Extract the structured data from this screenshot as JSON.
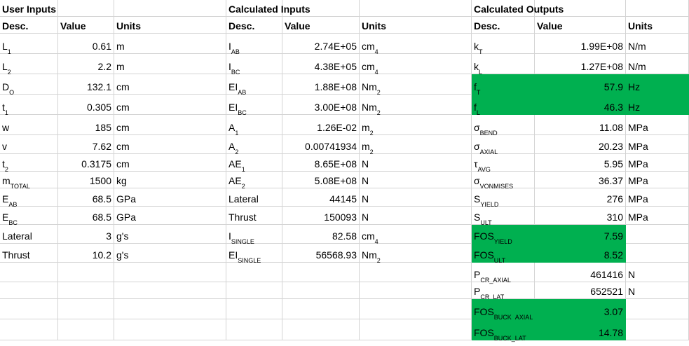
{
  "colors": {
    "highlight": "#00b050",
    "grid": "#d4d4d4"
  },
  "rows": [
    [
      {
        "t": "User Inputs",
        "b": 1
      },
      "",
      "",
      {
        "t": "Calculated Inputs",
        "b": 1
      },
      "",
      "",
      {
        "t": "Calculated Outputs",
        "b": 1
      },
      "",
      ""
    ],
    [
      {
        "t": "Desc.",
        "b": 1
      },
      {
        "t": "Value",
        "b": 1
      },
      {
        "t": "Units",
        "b": 1
      },
      {
        "t": "Desc.",
        "b": 1
      },
      {
        "t": "Value",
        "b": 1
      },
      {
        "t": "Units",
        "b": 1
      },
      {
        "t": "Desc.",
        "b": 1
      },
      {
        "t": "Value",
        "b": 1
      },
      {
        "t": "Units",
        "b": 1
      }
    ],
    [
      {
        "t": "L",
        "sub": "1"
      },
      {
        "t": "0.61",
        "r": 1
      },
      "m",
      {
        "t": "I",
        "sub": "AB"
      },
      {
        "t": "2.74E+05",
        "r": 1
      },
      {
        "t": "cm",
        "sup": "4"
      },
      {
        "t": "k",
        "sub": "T"
      },
      {
        "t": "1.99E+08",
        "r": 1
      },
      "N/m"
    ],
    [
      {
        "t": "L",
        "sub": "2"
      },
      {
        "t": "2.2",
        "r": 1
      },
      "m",
      {
        "t": "I",
        "sub": "BC"
      },
      {
        "t": "4.38E+05",
        "r": 1
      },
      {
        "t": "cm",
        "sup": "4"
      },
      {
        "t": "k",
        "sub": "L"
      },
      {
        "t": "1.27E+08",
        "r": 1
      },
      "N/m"
    ],
    [
      {
        "t": "D",
        "sub": "O"
      },
      {
        "t": "132.1",
        "r": 1
      },
      "cm",
      {
        "t": "EI",
        "sub": "AB"
      },
      {
        "t": "1.88E+08",
        "r": 1
      },
      {
        "t": "Nm",
        "sup": "2"
      },
      {
        "t": "f",
        "sub": "T",
        "hl": 1
      },
      {
        "t": "57.9",
        "r": 1,
        "hl": 1
      },
      {
        "t": "Hz",
        "hl": 1
      }
    ],
    [
      {
        "t": "t",
        "sub": "1"
      },
      {
        "t": "0.305",
        "r": 1
      },
      "cm",
      {
        "t": "EI",
        "sub": "BC"
      },
      {
        "t": "3.00E+08",
        "r": 1
      },
      {
        "t": "Nm",
        "sup": "2"
      },
      {
        "t": "f",
        "sub": "L",
        "hl": 1
      },
      {
        "t": "46.3",
        "r": 1,
        "hl": 1
      },
      {
        "t": "Hz",
        "hl": 1
      }
    ],
    [
      "w",
      {
        "t": "185",
        "r": 1
      },
      "cm",
      {
        "t": "A",
        "sub": "1"
      },
      {
        "t": "1.26E-02",
        "r": 1
      },
      {
        "t": "m",
        "sup": "2"
      },
      {
        "t": "σ",
        "sub": "BEND"
      },
      {
        "t": "11.08",
        "r": 1
      },
      "MPa"
    ],
    [
      "v",
      {
        "t": "7.62",
        "r": 1
      },
      "cm",
      {
        "t": "A",
        "sub": "2"
      },
      {
        "t": "0.00741934",
        "r": 1
      },
      {
        "t": "m",
        "sup": "2"
      },
      {
        "t": "σ",
        "sub": "AXIAL"
      },
      {
        "t": "20.23",
        "r": 1
      },
      "MPa"
    ],
    [
      {
        "t": "t",
        "sub": "2"
      },
      {
        "t": "0.3175",
        "r": 1
      },
      "cm",
      {
        "t": "AE",
        "sub": "1"
      },
      {
        "t": "8.65E+08",
        "r": 1
      },
      "N",
      {
        "t": "τ",
        "sub": "AVG"
      },
      {
        "t": "5.95",
        "r": 1
      },
      "MPa"
    ],
    [
      {
        "t": "m",
        "sub": "TOTAL"
      },
      {
        "t": "1500",
        "r": 1
      },
      "kg",
      {
        "t": "AE",
        "sub": "2"
      },
      {
        "t": "5.08E+08",
        "r": 1
      },
      "N",
      {
        "t": "σ",
        "sub": "VONMISES"
      },
      {
        "t": "36.37",
        "r": 1
      },
      "MPa"
    ],
    [
      {
        "t": "E",
        "sub": "AB"
      },
      {
        "t": "68.5",
        "r": 1
      },
      "GPa",
      "Lateral",
      {
        "t": "44145",
        "r": 1
      },
      "N",
      {
        "t": "S",
        "sub": "YIELD"
      },
      {
        "t": "276",
        "r": 1
      },
      "MPa"
    ],
    [
      {
        "t": "E",
        "sub": "BC"
      },
      {
        "t": "68.5",
        "r": 1
      },
      "GPa",
      "Thrust",
      {
        "t": "150093",
        "r": 1
      },
      "N",
      {
        "t": "S",
        "sub": "ULT"
      },
      {
        "t": "310",
        "r": 1
      },
      "MPa"
    ],
    [
      "Lateral",
      {
        "t": "3",
        "r": 1
      },
      "g's",
      {
        "t": "I",
        "sub": "SINGLE"
      },
      {
        "t": "82.58",
        "r": 1
      },
      {
        "t": "cm",
        "sup": "4"
      },
      {
        "t": "FOS",
        "sub": "YIELD",
        "hl": 1
      },
      {
        "t": "7.59",
        "r": 1,
        "hl": 1
      },
      ""
    ],
    [
      "Thrust",
      {
        "t": "10.2",
        "r": 1
      },
      "g's",
      {
        "t": "EI",
        "sub": "SINGLE"
      },
      {
        "t": "56568.93",
        "r": 1
      },
      {
        "t": "Nm",
        "sup": "2"
      },
      {
        "t": "FOS",
        "sub": "ULT",
        "hl": 1
      },
      {
        "t": "8.52",
        "r": 1,
        "hl": 1
      },
      ""
    ],
    [
      "",
      "",
      "",
      "",
      "",
      "",
      {
        "t": "P",
        "sub": "CR_AXIAL"
      },
      {
        "t": "461416",
        "r": 1
      },
      "N"
    ],
    [
      "",
      "",
      "",
      "",
      "",
      "",
      {
        "t": "P",
        "sub": "CR_LAT"
      },
      {
        "t": "652521",
        "r": 1
      },
      "N"
    ],
    [
      "",
      "",
      "",
      "",
      "",
      "",
      {
        "t": "FOS",
        "sub": "BUCK_AXIAL",
        "hl": 1
      },
      {
        "t": "3.07",
        "r": 1,
        "hl": 1
      },
      ""
    ],
    [
      "",
      "",
      "",
      "",
      "",
      "",
      {
        "t": "FOS",
        "sub": "BUCK_LAT",
        "hl": 1
      },
      {
        "t": "14.78",
        "r": 1,
        "hl": 1
      },
      ""
    ]
  ]
}
